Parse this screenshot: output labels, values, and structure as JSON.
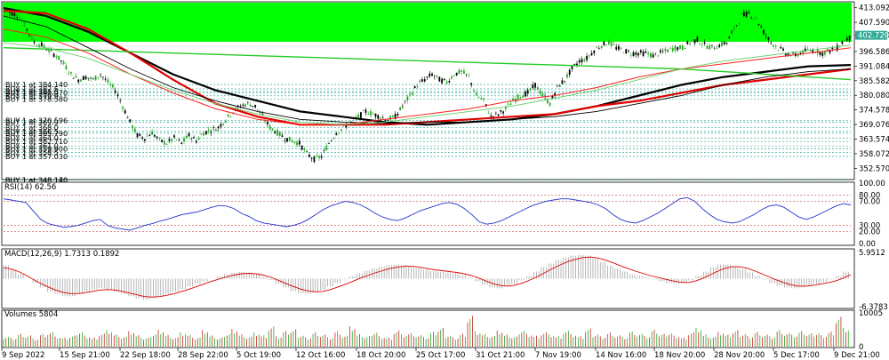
{
  "chart_data": {
    "type": "candlestick",
    "price_axis": {
      "ylim": [
        349.0,
        415.0
      ],
      "ticks": [
        "413.092",
        "407.590",
        "402.720",
        "396.586",
        "391.084",
        "385.582",
        "380.080",
        "374.578",
        "369.076",
        "363.574",
        "358.072",
        "352.570"
      ],
      "tick_values": [
        413.092,
        407.59,
        402.72,
        396.586,
        391.084,
        385.582,
        380.08,
        374.578,
        369.076,
        363.574,
        358.072,
        352.57
      ],
      "current_price": "402.720",
      "current_value": 402.72
    },
    "x_axis": {
      "ticks": [
        "9 Sep 2022",
        "15 Sep 21:00",
        "22 Sep 18:00",
        "28 Sep 22:00",
        "5 Oct 19:00",
        "12 Oct 16:00",
        "18 Oct 20:00",
        "25 Oct 17:00",
        "31 Oct 21:00",
        "7 Nov 19:00",
        "14 Nov 16:00",
        "18 Nov 20:00",
        "28 Nov 20:00",
        "5 Dec 17:00",
        "9 Dec 21:00"
      ]
    },
    "price_series": [
      411,
      410,
      405,
      400,
      399,
      397,
      395,
      392,
      388,
      386,
      387,
      386,
      388,
      385,
      382,
      376,
      370,
      365,
      364,
      366,
      363,
      362,
      364,
      362,
      365,
      363,
      366,
      367,
      368,
      371,
      374,
      376,
      377,
      376,
      372,
      368,
      366,
      364,
      363,
      362,
      358,
      356,
      357,
      362,
      366,
      368,
      370,
      372,
      374,
      373,
      372,
      371,
      372,
      376,
      380,
      384,
      386,
      388,
      386,
      385,
      388,
      389,
      387,
      380,
      378,
      372,
      373,
      375,
      378,
      380,
      381,
      384,
      380,
      377,
      383,
      386,
      390,
      393,
      394,
      397,
      399,
      400,
      398,
      397,
      396,
      396,
      396,
      395,
      396,
      397,
      398,
      398,
      400,
      401,
      399,
      398,
      399,
      400,
      405,
      410,
      411,
      409,
      404,
      400,
      398,
      396,
      395,
      396,
      397,
      397,
      396,
      397,
      398,
      401,
      402
    ],
    "moving_averages": [
      {
        "color": "#000000",
        "values": [
          413,
          410,
          404,
          396,
          388,
          382,
          378,
          374,
          372,
          370,
          369,
          370,
          371,
          373,
          376,
          380,
          384,
          387,
          389,
          391,
          391.5
        ]
      },
      {
        "color": "#e00000",
        "values": [
          412,
          411,
          405,
          396,
          386,
          377,
          372,
          369,
          369,
          369,
          370,
          371,
          372,
          373,
          376,
          378,
          381,
          384,
          386,
          388,
          390
        ]
      },
      {
        "color": "#22cc22",
        "values": [
          398,
          397.5,
          397,
          396.5,
          396,
          395.5,
          395,
          394.5,
          394,
          393.5,
          393,
          392.5,
          392,
          391.5,
          391,
          390.5,
          390,
          389,
          388,
          387,
          386
        ]
      },
      {
        "color": "#000000",
        "values": [
          410,
          406,
          398,
          390,
          383,
          378,
          374,
          371,
          370,
          369.5,
          370,
          370,
          371,
          372,
          374,
          377,
          380,
          384,
          387,
          389,
          390
        ]
      },
      {
        "color": "#ff2020",
        "values": [
          405,
          402,
          396,
          388,
          381,
          375,
          371,
          369,
          369,
          371,
          373,
          375,
          378,
          380,
          383,
          387,
          390,
          392,
          394,
          396,
          398
        ]
      },
      {
        "color": "#66cc66",
        "values": [
          400,
          398,
          394,
          388,
          382,
          377,
          373,
          370,
          369,
          370,
          372,
          374,
          376,
          379,
          382,
          386,
          390,
          393,
          395,
          397,
          399
        ]
      }
    ],
    "buy_orders": [
      "BUY 1 at 384.140",
      "BUY 1 at 382.5",
      "BUY 1 at 381.5",
      "BUY 1 at 380.970",
      "BUY 1 at 379.9",
      "BUY 1 at 378.580",
      "BUY 1 at 370.596",
      "BUY 1 at 369.9",
      "BUY 1 at 368.0",
      "BUY 1 at 366.5",
      "BUY 1 at 365.790",
      "BUY 1 at 364.0",
      "BUY 1 at 362.710",
      "BUY 1 at 361.0",
      "BUY 1 at 359.900",
      "BUY 1 at 358.5",
      "BUY 1 at 357.030",
      "BUY 1 at 348.140",
      "BUY 1 at 348.170"
    ],
    "buy_order_values": [
      384.14,
      382.5,
      381.5,
      380.97,
      379.9,
      378.58,
      370.596,
      369.9,
      368.0,
      366.5,
      365.79,
      364.0,
      362.71,
      361.0,
      359.9,
      358.5,
      357.03,
      348.14,
      348.17
    ],
    "rsi": {
      "label": "RSI(14) 62.56",
      "ticks": [
        "100.00",
        "80.00",
        "70.00",
        "30.00",
        "20.00",
        "0.00"
      ],
      "tick_values": [
        100,
        80,
        70,
        30,
        20,
        0
      ],
      "values": [
        74,
        72,
        70,
        68,
        54,
        40,
        33,
        30,
        27,
        28,
        30,
        34,
        38,
        40,
        30,
        26,
        24,
        22,
        26,
        30,
        33,
        37,
        40,
        44,
        48,
        50,
        52,
        56,
        60,
        63,
        62,
        58,
        50,
        45,
        38,
        34,
        32,
        30,
        28,
        30,
        34,
        40,
        48,
        56,
        62,
        66,
        70,
        68,
        64,
        58,
        50,
        44,
        40,
        38,
        42,
        48,
        54,
        58,
        62,
        66,
        68,
        65,
        58,
        48,
        36,
        32,
        34,
        38,
        44,
        50,
        56,
        62,
        66,
        70,
        72,
        74,
        74,
        72,
        70,
        68,
        64,
        58,
        48,
        40,
        36,
        34,
        38,
        44,
        50,
        58,
        66,
        74,
        76,
        70,
        58,
        48,
        40,
        36,
        34,
        36,
        42,
        48,
        56,
        62,
        64,
        60,
        52,
        44,
        40,
        44,
        50,
        56,
        62,
        66,
        64
      ]
    },
    "macd": {
      "label": "MACD(12,26,9) 1.7313 0.1892",
      "ticks": [
        "5.9512",
        "-6.3783"
      ],
      "tick_values": [
        5.9512,
        -6.3783
      ],
      "histogram": [
        3,
        2,
        1,
        0,
        -1,
        -2,
        -3,
        -3.5,
        -4,
        -4,
        -3.5,
        -3,
        -2.5,
        -2.2,
        -2.5,
        -3,
        -3.5,
        -4,
        -4.5,
        -4.8,
        -4.5,
        -4,
        -3.5,
        -3,
        -2.4,
        -1.8,
        -1.2,
        -0.6,
        0,
        0.5,
        1,
        1.3,
        1.5,
        1.4,
        1,
        0.4,
        -0.3,
        -1.2,
        -2,
        -2.8,
        -3.3,
        -3.5,
        -3.2,
        -2.6,
        -1.8,
        -1,
        -0.2,
        0.5,
        1.2,
        1.8,
        2.3,
        2.7,
        3,
        3.2,
        3.1,
        2.8,
        2.4,
        2,
        1.7,
        1.5,
        1.4,
        1.2,
        0.8,
        0.2,
        -0.6,
        -1.4,
        -2,
        -2.2,
        -1.8,
        -1.2,
        -0.4,
        0.6,
        1.6,
        2.6,
        3.4,
        4.2,
        4.8,
        5.2,
        5.4,
        5.2,
        4.6,
        3.8,
        3,
        2.2,
        1.6,
        1,
        0.6,
        0.2,
        -0.2,
        -0.6,
        -1,
        -1.2,
        -1,
        -0.4,
        0.6,
        1.6,
        2.6,
        3.2,
        3.2,
        2.8,
        2.2,
        1.4,
        0.6,
        -0.2,
        -1,
        -1.6,
        -2,
        -2.2,
        -2,
        -1.6,
        -1.2,
        -0.8,
        -0.2,
        0.6,
        1.6
      ],
      "signal": [
        2.5,
        2.2,
        1.6,
        0.8,
        -0.2,
        -1.1,
        -1.9,
        -2.6,
        -3.1,
        -3.4,
        -3.4,
        -3.2,
        -2.9,
        -2.6,
        -2.5,
        -2.6,
        -2.9,
        -3.3,
        -3.7,
        -4.1,
        -4.2,
        -4.1,
        -3.8,
        -3.4,
        -2.9,
        -2.4,
        -1.8,
        -1.2,
        -0.6,
        -0.1,
        0.4,
        0.8,
        1.1,
        1.2,
        1.1,
        0.8,
        0.3,
        -0.4,
        -1.1,
        -1.8,
        -2.4,
        -2.8,
        -3,
        -2.9,
        -2.5,
        -1.9,
        -1.3,
        -0.6,
        0.1,
        0.7,
        1.3,
        1.8,
        2.3,
        2.6,
        2.8,
        2.8,
        2.6,
        2.3,
        2.0,
        1.8,
        1.6,
        1.4,
        1.1,
        0.7,
        0.1,
        -0.6,
        -1.2,
        -1.6,
        -1.7,
        -1.4,
        -0.9,
        -0.2,
        0.6,
        1.5,
        2.4,
        3.2,
        3.9,
        4.4,
        4.8,
        4.9,
        4.7,
        4.2,
        3.6,
        2.9,
        2.3,
        1.7,
        1.2,
        0.7,
        0.3,
        -0.1,
        -0.5,
        -0.8,
        -0.9,
        -0.6,
        0,
        0.8,
        1.6,
        2.3,
        2.7,
        2.7,
        2.4,
        1.8,
        1.1,
        0.4,
        -0.3,
        -0.9,
        -1.4,
        -1.7,
        -1.7,
        -1.5,
        -1.2,
        -0.9,
        -0.5,
        0.1,
        0.9
      ]
    },
    "volumes": {
      "label": "Volumes 5804",
      "ticks": [
        "10005",
        "0"
      ],
      "tick_values": [
        10005,
        0
      ],
      "values": [
        3200,
        2800,
        4100,
        3600,
        2500,
        3900,
        4500,
        3000,
        2700,
        3300,
        4800,
        3500,
        2900,
        4200,
        5100,
        3800,
        3100,
        4600,
        3400,
        2600,
        4000,
        5300,
        3700,
        3000,
        4400,
        3600,
        2800,
        4900,
        3300,
        2700,
        4100,
        5600,
        3900,
        3200,
        4300,
        3500,
        6200,
        3100,
        4700,
        5200,
        3600,
        3000,
        4500,
        3900,
        2900,
        4800,
        3400,
        6000,
        3700,
        3100,
        4600,
        3300,
        2800,
        5100,
        3800,
        4200,
        3500,
        2900,
        4400,
        5500,
        3600,
        3000,
        4100,
        9800,
        4700,
        3900,
        3300,
        4800,
        3600,
        3000,
        5200,
        4100,
        3500,
        4600,
        3800,
        3200,
        4900,
        3700,
        3100,
        5400,
        4000,
        3300,
        4500,
        3600,
        3000,
        4700,
        3900,
        3200,
        5000,
        3800,
        4300,
        3500,
        2900,
        4600,
        5800,
        3700,
        3100,
        4400,
        3600,
        4900,
        4100,
        3400,
        4700,
        3800,
        3200,
        5100,
        4200,
        3500,
        4600,
        3900,
        4300,
        3600,
        4800,
        9500,
        5804
      ]
    }
  }
}
